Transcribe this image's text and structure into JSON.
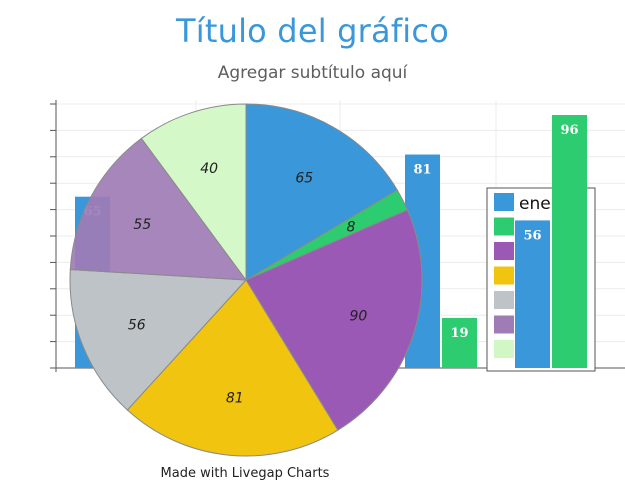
{
  "chart_data": [
    {
      "type": "bar",
      "title": "Título del gráfico",
      "subtitle": "Agregar subtítulo aquí",
      "series": [
        {
          "color": "#3a97d9",
          "values": [
            65,
            81,
            56
          ]
        },
        {
          "color": "#2ecc71",
          "values": [
            8,
            19,
            96
          ]
        }
      ],
      "grid": true
    },
    {
      "type": "pie",
      "slices": [
        {
          "value": 65,
          "color": "#3a97d9"
        },
        {
          "value": 8,
          "color": "#2ecc71"
        },
        {
          "value": 90,
          "color": "#9b59b6"
        },
        {
          "value": 81,
          "color": "#f1c40f"
        },
        {
          "value": 56,
          "color": "#bdc3c7"
        },
        {
          "value": 55,
          "color": "#a07cb6"
        },
        {
          "value": 40,
          "color": "#d1f7c4"
        }
      ],
      "legend_placement": "right",
      "legend_visible_text": [
        "ene"
      ]
    }
  ],
  "footer": "Made with Livegap Charts"
}
